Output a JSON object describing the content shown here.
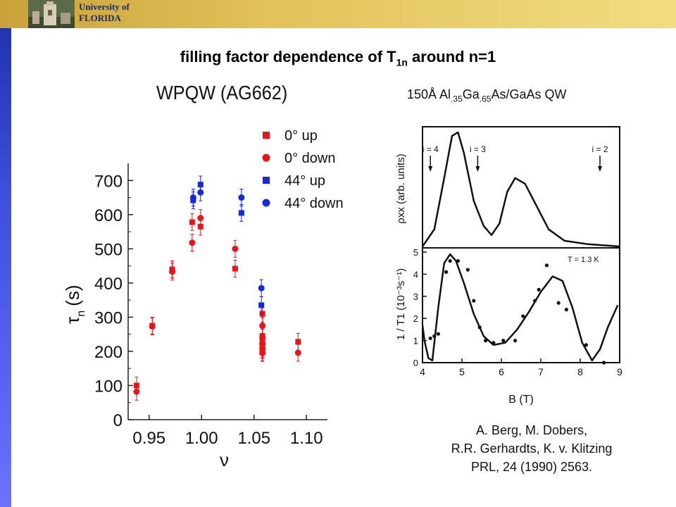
{
  "header": {
    "logo_line1": "University of",
    "logo_line2": "FLORIDA"
  },
  "slide": {
    "title_main": "filling factor dependence of T",
    "title_sub": "1n",
    "title_end": " around n=1"
  },
  "plot": {
    "title": "WPQW (AG662)",
    "ylabel_main": "τ",
    "ylabel_sub": "n",
    "ylabel_unit": "(s)",
    "xlabel": "ν",
    "legend": [
      {
        "label": "0° up",
        "color": "#e8151b",
        "marker": "square"
      },
      {
        "label": "0° down",
        "color": "#e8151b",
        "marker": "circle"
      },
      {
        "label": "44° up",
        "color": "#1528e0",
        "marker": "square"
      },
      {
        "label": "44° down",
        "color": "#1528e0",
        "marker": "circle"
      }
    ]
  },
  "figure": {
    "qw_label_a": "150Å Al",
    "qw_sub1": ".35",
    "qw_label_b": "Ga",
    "qw_sub2": ".65",
    "qw_label_c": "As/GaAs QW",
    "top_ylabel": "ρxx (arb. units)",
    "bottom_ylabel": "1 / T1 (10⁻³s⁻¹)",
    "xlabel": "B (T)",
    "temp_label": "T = 1.3 K",
    "markers": [
      "i = 4",
      "i = 3",
      "i = 2"
    ]
  },
  "reference": {
    "line1": "A. Berg, M. Dobers,",
    "line2": "R.R. Gerhardts, K. v. Klitzing",
    "line3": "PRL, 24 (1990) 2563."
  },
  "chart_data": [
    {
      "type": "scatter",
      "title": "WPQW (AG662)",
      "xlabel": "ν",
      "ylabel": "τn (s)",
      "xlim": [
        0.93,
        1.12
      ],
      "ylim": [
        0,
        750
      ],
      "xticks": [
        "0.95",
        "1.00",
        "1.05",
        "1.10"
      ],
      "yticks": [
        "0",
        "100",
        "200",
        "300",
        "400",
        "500",
        "600",
        "700"
      ],
      "series": [
        {
          "name": "0° up",
          "color": "#e8151b",
          "marker": "square",
          "points": [
            [
              0.938,
              100
            ],
            [
              0.953,
              275
            ],
            [
              0.972,
              440
            ],
            [
              0.991,
              578
            ],
            [
              0.999,
              565
            ],
            [
              1.032,
              442
            ],
            [
              1.058,
              310
            ],
            [
              1.058,
              245
            ],
            [
              1.058,
              228
            ],
            [
              1.058,
              215
            ],
            [
              1.058,
              205
            ],
            [
              1.058,
              198
            ],
            [
              1.092,
              228
            ]
          ]
        },
        {
          "name": "0° down",
          "color": "#e8151b",
          "marker": "circle",
          "points": [
            [
              0.938,
              82
            ],
            [
              0.953,
              273
            ],
            [
              0.972,
              433
            ],
            [
              0.991,
              518
            ],
            [
              0.999,
              590
            ],
            [
              1.032,
              500
            ],
            [
              1.058,
              275
            ],
            [
              1.058,
              240
            ],
            [
              1.058,
              222
            ],
            [
              1.058,
              208
            ],
            [
              1.058,
              195
            ],
            [
              1.092,
              196
            ]
          ]
        },
        {
          "name": "44° up",
          "color": "#1528e0",
          "marker": "square",
          "points": [
            [
              0.992,
              642
            ],
            [
              0.999,
              688
            ],
            [
              1.038,
              605
            ],
            [
              1.057,
              335
            ]
          ]
        },
        {
          "name": "44° down",
          "color": "#1528e0",
          "marker": "circle",
          "points": [
            [
              0.992,
              650
            ],
            [
              0.999,
              665
            ],
            [
              1.038,
              650
            ],
            [
              1.057,
              385
            ]
          ]
        }
      ]
    },
    {
      "type": "line",
      "title": "150Å Al.35Ga.65As/GaAs QW",
      "xlabel": "B (T)",
      "ylabel": "ρxx (arb. units)",
      "xlim": [
        4,
        9
      ],
      "xticks": [
        "4",
        "5",
        "6",
        "7",
        "8",
        "9"
      ],
      "series": [
        {
          "name": "",
          "x": [
            3.9,
            4.3,
            4.55,
            4.75,
            4.9,
            5.05,
            5.3,
            5.55,
            5.75,
            5.95,
            6.15,
            6.35,
            6.6,
            6.9,
            7.2,
            7.6,
            8.2,
            9.0
          ],
          "y": [
            0.0,
            0.15,
            0.6,
            0.97,
            1.0,
            0.82,
            0.4,
            0.18,
            0.1,
            0.2,
            0.48,
            0.6,
            0.55,
            0.35,
            0.15,
            0.05,
            0.02,
            0.0
          ]
        }
      ]
    },
    {
      "type": "scatter",
      "title": "",
      "xlabel": "B (T)",
      "ylabel": "1 / T1 (10⁻³s⁻¹)",
      "xlim": [
        4,
        9
      ],
      "ylim": [
        0,
        5
      ],
      "xticks": [
        "4",
        "5",
        "6",
        "7",
        "8",
        "9"
      ],
      "yticks": [
        "0",
        "1",
        "2",
        "3",
        "4",
        "5"
      ],
      "series": [
        {
          "name": "data",
          "marker": "dot",
          "x": [
            4.2,
            4.3,
            4.4,
            4.6,
            4.7,
            4.9,
            5.15,
            5.3,
            5.45,
            5.6,
            5.8,
            6.05,
            6.35,
            6.55,
            6.85,
            6.95,
            7.15,
            7.45,
            7.65,
            8.15,
            8.6
          ],
          "y": [
            1.1,
            1.2,
            1.3,
            4.1,
            4.6,
            4.6,
            4.2,
            2.8,
            1.6,
            1.0,
            0.9,
            1.0,
            1.0,
            2.1,
            2.8,
            3.3,
            4.4,
            2.7,
            2.4,
            0.8,
            0.0
          ]
        },
        {
          "name": "fit",
          "marker": "line",
          "x": [
            3.95,
            4.05,
            4.15,
            4.25,
            4.4,
            4.55,
            4.7,
            4.85,
            5.05,
            5.3,
            5.55,
            5.8,
            6.1,
            6.4,
            6.7,
            7.0,
            7.3,
            7.55,
            7.8,
            8.05,
            8.3,
            8.5,
            8.7,
            8.95
          ],
          "y": [
            1.7,
            1.0,
            0.2,
            0.1,
            2.5,
            4.5,
            4.9,
            4.6,
            3.6,
            2.2,
            1.2,
            0.8,
            0.9,
            1.5,
            2.3,
            3.2,
            3.9,
            3.7,
            2.5,
            0.9,
            0.1,
            0.6,
            1.6,
            2.6
          ]
        }
      ]
    }
  ]
}
